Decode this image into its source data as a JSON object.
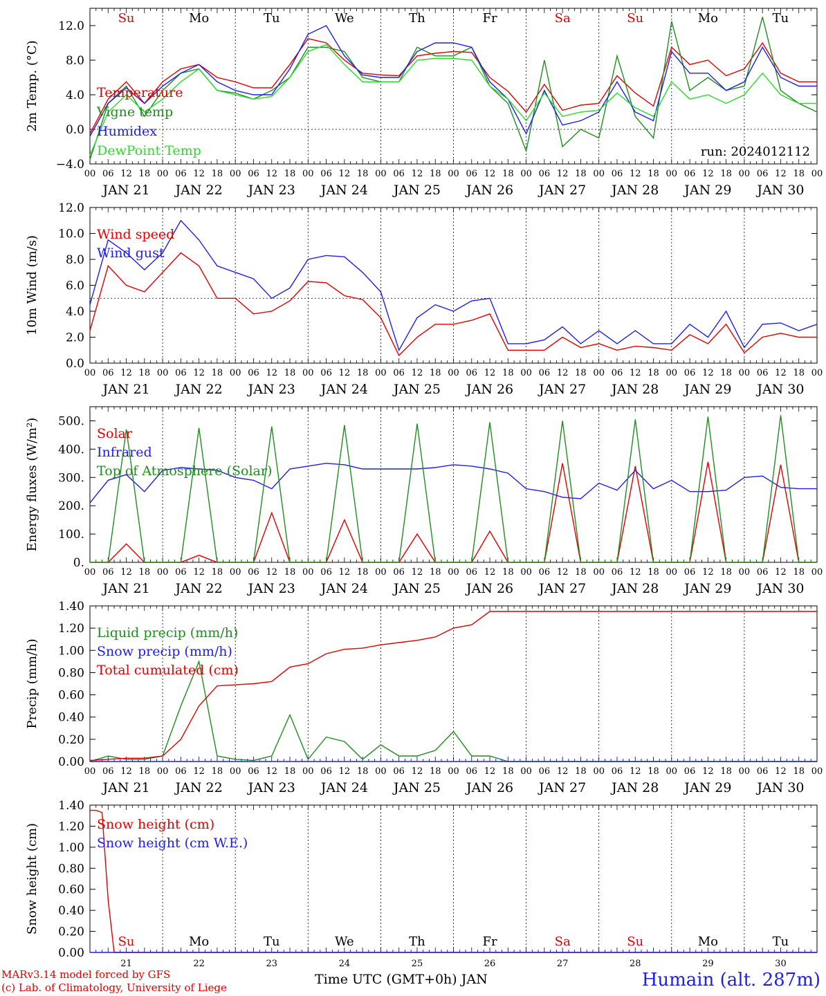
{
  "colors": {
    "red": "#e00000",
    "green": "#1e8c1e",
    "blue": "#1e1ee6",
    "lightgreen": "#28dc28",
    "black": "#000000"
  },
  "x_axis": {
    "hour_ticks": [
      "00",
      "06",
      "12",
      "18"
    ],
    "days": [
      "JAN 21",
      "JAN 22",
      "JAN 23",
      "JAN 24",
      "JAN 25",
      "JAN 26",
      "JAN 27",
      "JAN 28",
      "JAN 29",
      "JAN 30"
    ],
    "day_numbers": [
      "21",
      "22",
      "23",
      "24",
      "25",
      "26",
      "27",
      "28",
      "29",
      "30"
    ],
    "weekdays": [
      "Su",
      "Mo",
      "Tu",
      "We",
      "Th",
      "Fr",
      "Sa",
      "Su",
      "Mo",
      "Tu"
    ],
    "weekday_colors": [
      "#e00000",
      "#000000",
      "#000000",
      "#000000",
      "#000000",
      "#000000",
      "#e00000",
      "#e00000",
      "#000000",
      "#000000"
    ]
  },
  "chart_data": [
    {
      "type": "line",
      "ylabel": "2m Temp. (°C)",
      "ylim": [
        -4,
        14
      ],
      "yticks": [
        "−4.0",
        "0.0",
        "4.0",
        "8.0",
        "12.0"
      ],
      "ytick_values": [
        -4,
        0,
        4,
        8,
        12
      ],
      "annotation": "run: 2024012112",
      "x_hours": [
        0,
        6,
        12,
        18,
        24,
        30,
        36,
        42,
        48,
        54,
        60,
        66,
        72,
        78,
        84,
        90,
        96,
        102,
        108,
        114,
        120,
        126,
        132,
        138,
        144,
        150,
        156,
        162,
        168,
        174,
        180,
        186,
        192,
        198,
        204,
        210,
        216,
        222,
        228,
        234,
        240
      ],
      "series": [
        {
          "name": "Temperature",
          "color": "#e00000",
          "values": [
            -0.5,
            3.5,
            5.5,
            3.0,
            5.5,
            7.0,
            7.5,
            6.0,
            5.5,
            4.8,
            4.8,
            7.5,
            10.5,
            10.0,
            8.0,
            6.5,
            6.3,
            6.2,
            8.5,
            8.8,
            9.0,
            8.9,
            6.0,
            4.4,
            2.0,
            5.2,
            2.2,
            2.8,
            3.0,
            6.2,
            4.2,
            2.7,
            9.5,
            7.5,
            8.0,
            6.2,
            7.0,
            10.0,
            6.5,
            5.5,
            5.5
          ]
        },
        {
          "name": "Vigne temp",
          "color": "#1e8c1e",
          "values": [
            -3.5,
            3.0,
            5.0,
            1.5,
            4.5,
            6.5,
            7.0,
            4.5,
            4.2,
            3.5,
            4.5,
            6.0,
            9.5,
            9.5,
            9.0,
            6.0,
            5.5,
            5.5,
            9.5,
            8.5,
            8.5,
            9.5,
            5.0,
            3.0,
            -2.5,
            8.0,
            -2.0,
            0.0,
            -1.0,
            8.5,
            1.5,
            -1.0,
            12.5,
            4.5,
            6.0,
            4.5,
            5.0,
            13.0,
            4.5,
            3.0,
            2.0
          ]
        },
        {
          "name": "Humidex",
          "color": "#1e1ee6",
          "values": [
            -0.8,
            3.0,
            4.8,
            3.0,
            5.0,
            6.5,
            7.5,
            5.5,
            4.5,
            4.0,
            4.0,
            7.0,
            11.0,
            12.0,
            8.5,
            6.3,
            6.0,
            6.0,
            9.0,
            10.0,
            10.0,
            9.5,
            5.5,
            3.5,
            -0.5,
            4.5,
            0.5,
            1.0,
            2.0,
            5.5,
            2.0,
            1.0,
            9.0,
            6.5,
            6.5,
            4.5,
            5.5,
            9.5,
            6.0,
            5.0,
            5.0
          ]
        },
        {
          "name": "DewPoint Temp",
          "color": "#28dc28",
          "values": [
            -3.0,
            2.0,
            4.0,
            2.0,
            3.5,
            5.5,
            7.0,
            4.5,
            4.0,
            3.5,
            3.8,
            6.0,
            9.0,
            9.8,
            7.5,
            5.5,
            5.5,
            5.5,
            8.0,
            8.2,
            8.2,
            8.0,
            5.0,
            3.5,
            1.0,
            4.2,
            1.5,
            2.0,
            2.2,
            4.2,
            2.5,
            1.5,
            5.5,
            3.5,
            4.0,
            3.0,
            4.0,
            6.5,
            4.0,
            3.0,
            3.0
          ]
        }
      ]
    },
    {
      "type": "line",
      "ylabel": "10m Wind (m/s)",
      "ylim": [
        0,
        12
      ],
      "yticks": [
        "0.0",
        "2.0",
        "4.0",
        "6.0",
        "8.0",
        "10.0",
        "12.0"
      ],
      "ytick_values": [
        0,
        2,
        4,
        6,
        8,
        10,
        12
      ],
      "hline": 5.0,
      "x_hours": [
        0,
        6,
        12,
        18,
        24,
        30,
        36,
        42,
        48,
        54,
        60,
        66,
        72,
        78,
        84,
        90,
        96,
        102,
        108,
        114,
        120,
        126,
        132,
        138,
        144,
        150,
        156,
        162,
        168,
        174,
        180,
        186,
        192,
        198,
        204,
        210,
        216,
        222,
        228,
        234,
        240
      ],
      "series": [
        {
          "name": "Wind speed",
          "color": "#e00000",
          "values": [
            2.5,
            7.5,
            6.0,
            5.5,
            7.0,
            8.5,
            7.5,
            5.0,
            5.0,
            3.8,
            4.0,
            4.8,
            6.3,
            6.2,
            5.2,
            4.9,
            3.5,
            0.6,
            2.0,
            3.0,
            3.0,
            3.3,
            3.8,
            1.0,
            1.0,
            1.0,
            2.0,
            1.2,
            1.5,
            1.0,
            1.3,
            1.2,
            1.0,
            2.2,
            1.5,
            3.0,
            0.8,
            2.0,
            2.3,
            2.0,
            2.0
          ]
        },
        {
          "name": "Wind gust",
          "color": "#1e1ee6",
          "values": [
            4.5,
            9.5,
            8.5,
            7.2,
            8.5,
            11.0,
            9.5,
            7.5,
            7.0,
            6.5,
            5.0,
            5.8,
            8.0,
            8.3,
            8.2,
            7.0,
            5.5,
            1.0,
            3.5,
            4.5,
            4.0,
            4.8,
            5.0,
            1.5,
            1.5,
            1.8,
            2.8,
            1.5,
            2.5,
            1.5,
            2.5,
            1.5,
            1.5,
            3.0,
            2.0,
            4.0,
            1.2,
            3.0,
            3.1,
            2.5,
            3.0
          ]
        }
      ]
    },
    {
      "type": "line",
      "ylabel": "Energy fluxes (W/m²)",
      "ylim": [
        0,
        550
      ],
      "yticks": [
        "0.",
        "100.",
        "200.",
        "300.",
        "400.",
        "500."
      ],
      "ytick_values": [
        0,
        100,
        200,
        300,
        400,
        500
      ],
      "x_hours": [
        0,
        6,
        12,
        18,
        24,
        30,
        36,
        42,
        48,
        54,
        60,
        66,
        72,
        78,
        84,
        90,
        96,
        102,
        108,
        114,
        120,
        126,
        132,
        138,
        144,
        150,
        156,
        162,
        168,
        174,
        180,
        186,
        192,
        198,
        204,
        210,
        216,
        222,
        228,
        234,
        240
      ],
      "series": [
        {
          "name": "Solar",
          "color": "#e00000",
          "values": [
            0,
            0,
            65,
            0,
            0,
            0,
            25,
            0,
            0,
            0,
            175,
            0,
            0,
            0,
            150,
            0,
            0,
            0,
            100,
            0,
            0,
            0,
            110,
            0,
            0,
            0,
            350,
            0,
            0,
            0,
            340,
            0,
            0,
            0,
            355,
            0,
            0,
            0,
            345,
            0,
            0
          ]
        },
        {
          "name": "Infrared",
          "color": "#1e1ee6",
          "values": [
            210,
            290,
            310,
            250,
            325,
            335,
            330,
            325,
            300,
            290,
            260,
            330,
            340,
            350,
            345,
            330,
            330,
            330,
            330,
            335,
            345,
            340,
            330,
            315,
            260,
            250,
            230,
            225,
            280,
            255,
            325,
            260,
            290,
            250,
            250,
            255,
            300,
            305,
            265,
            260,
            260
          ]
        },
        {
          "name": "Top of Atmosphere (Solar)",
          "color": "#1e8c1e",
          "values": [
            0,
            0,
            470,
            0,
            0,
            0,
            475,
            0,
            0,
            0,
            480,
            0,
            0,
            0,
            485,
            0,
            0,
            0,
            490,
            0,
            0,
            0,
            495,
            0,
            0,
            0,
            500,
            0,
            0,
            0,
            505,
            0,
            0,
            0,
            515,
            0,
            0,
            0,
            520,
            0,
            0
          ]
        }
      ]
    },
    {
      "type": "line",
      "ylabel": "Precip (mm/h)",
      "ylim": [
        0,
        1.4
      ],
      "yticks": [
        "0.00",
        "0.20",
        "0.40",
        "0.60",
        "0.80",
        "1.00",
        "1.20",
        "1.40"
      ],
      "ytick_values": [
        0,
        0.2,
        0.4,
        0.6,
        0.8,
        1.0,
        1.2,
        1.4
      ],
      "x_hours": [
        0,
        6,
        12,
        18,
        24,
        30,
        36,
        42,
        48,
        54,
        60,
        66,
        72,
        78,
        84,
        90,
        96,
        102,
        108,
        114,
        120,
        126,
        132,
        138,
        144,
        150,
        156,
        162,
        168,
        174,
        180,
        186,
        192,
        198,
        204,
        210,
        216,
        222,
        228,
        234,
        240
      ],
      "series": [
        {
          "name": "Liquid precip (mm/h)",
          "color": "#1e8c1e",
          "values": [
            0,
            0.05,
            0.02,
            0.02,
            0.05,
            0.5,
            0.9,
            0.05,
            0.02,
            0.01,
            0.05,
            0.42,
            0.02,
            0.22,
            0.18,
            0.02,
            0.15,
            0.05,
            0.05,
            0.1,
            0.27,
            0.05,
            0.05,
            0,
            0,
            0,
            0,
            0,
            0,
            0,
            0,
            0,
            0,
            0,
            0,
            0,
            0,
            0,
            0,
            0,
            0
          ]
        },
        {
          "name": "Snow precip (mm/h)",
          "color": "#1e1ee6",
          "values": [
            0,
            0,
            0,
            0,
            0,
            0,
            0,
            0,
            0,
            0,
            0,
            0,
            0,
            0,
            0,
            0,
            0,
            0,
            0,
            0,
            0,
            0,
            0,
            0,
            0,
            0,
            0,
            0,
            0,
            0,
            0,
            0,
            0,
            0,
            0,
            0,
            0,
            0,
            0,
            0,
            0
          ]
        },
        {
          "name": "Total cumulated (cm)",
          "color": "#e00000",
          "values": [
            0.01,
            0.02,
            0.03,
            0.03,
            0.05,
            0.2,
            0.5,
            0.68,
            0.69,
            0.7,
            0.72,
            0.85,
            0.88,
            0.97,
            1.01,
            1.02,
            1.05,
            1.07,
            1.09,
            1.12,
            1.2,
            1.23,
            1.35,
            1.35,
            1.35,
            1.35,
            1.35,
            1.35,
            1.35,
            1.35,
            1.35,
            1.35,
            1.35,
            1.35,
            1.35,
            1.35,
            1.35,
            1.35,
            1.35,
            1.35,
            1.35
          ]
        }
      ]
    },
    {
      "type": "line",
      "ylabel": "Snow height (cm)",
      "ylim": [
        0,
        1.4
      ],
      "yticks": [
        "0.00",
        "0.20",
        "0.40",
        "0.60",
        "0.80",
        "1.00",
        "1.20",
        "1.40"
      ],
      "ytick_values": [
        0,
        0.2,
        0.4,
        0.6,
        0.8,
        1.0,
        1.2,
        1.4
      ],
      "x_hours": [
        0,
        2,
        4,
        6,
        8,
        240
      ],
      "series": [
        {
          "name": "Snow height (cm)",
          "color": "#e00000",
          "values": [
            1.35,
            1.35,
            1.33,
            0.5,
            0,
            0
          ]
        },
        {
          "name": "Snow height (cm W.E.)",
          "color": "#1e1ee6",
          "values": [
            0,
            0,
            0,
            0,
            0,
            0
          ]
        }
      ]
    }
  ],
  "footer": {
    "credit_line1": "MARv3.14 model forced by GFS",
    "credit_line2": "(c) Lab. of Climatology, University of Liege",
    "xlabel": "Time UTC (GMT+0h) JAN",
    "station": "Humain (alt. 287m)"
  }
}
